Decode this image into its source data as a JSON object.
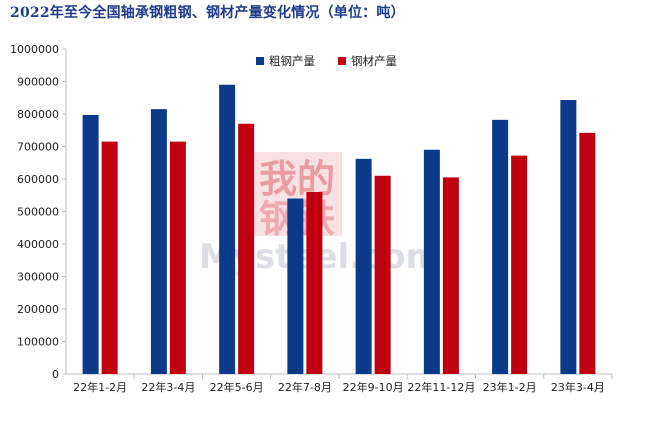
{
  "page": {
    "title": "2022年至今全国轴承钢粗钢、钢材产量变化情况（单位：吨）"
  },
  "watermark": {
    "text_top": "我的",
    "text_bottom": "钢铁",
    "brand": "Mysteel.com"
  },
  "colors": {
    "crude": "#0b3a8a",
    "finished": "#c00010",
    "title": "#1f3b8c",
    "axis": "#bfbfbf"
  },
  "chart_data": {
    "type": "bar",
    "title": "2022年至今全国轴承钢粗钢、钢材产量变化情况（单位：吨）",
    "categories": [
      "22年1-2月",
      "22年3-4月",
      "22年5-6月",
      "22年7-8月",
      "22年9-10月",
      "22年11-12月",
      "23年1-2月",
      "23年3-4月"
    ],
    "series": [
      {
        "name": "粗钢产量",
        "values": [
          797000,
          815000,
          890000,
          540000,
          662000,
          690000,
          782000,
          843000
        ]
      },
      {
        "name": "钢材产量",
        "values": [
          715000,
          715000,
          770000,
          560000,
          610000,
          605000,
          672000,
          742000
        ]
      }
    ],
    "yticks": [
      "0",
      "100000",
      "200000",
      "300000",
      "400000",
      "500000",
      "600000",
      "700000",
      "800000",
      "900000",
      "1000000"
    ],
    "ylim": [
      0,
      1000000
    ],
    "legend_position": "top-center",
    "grid": false
  }
}
